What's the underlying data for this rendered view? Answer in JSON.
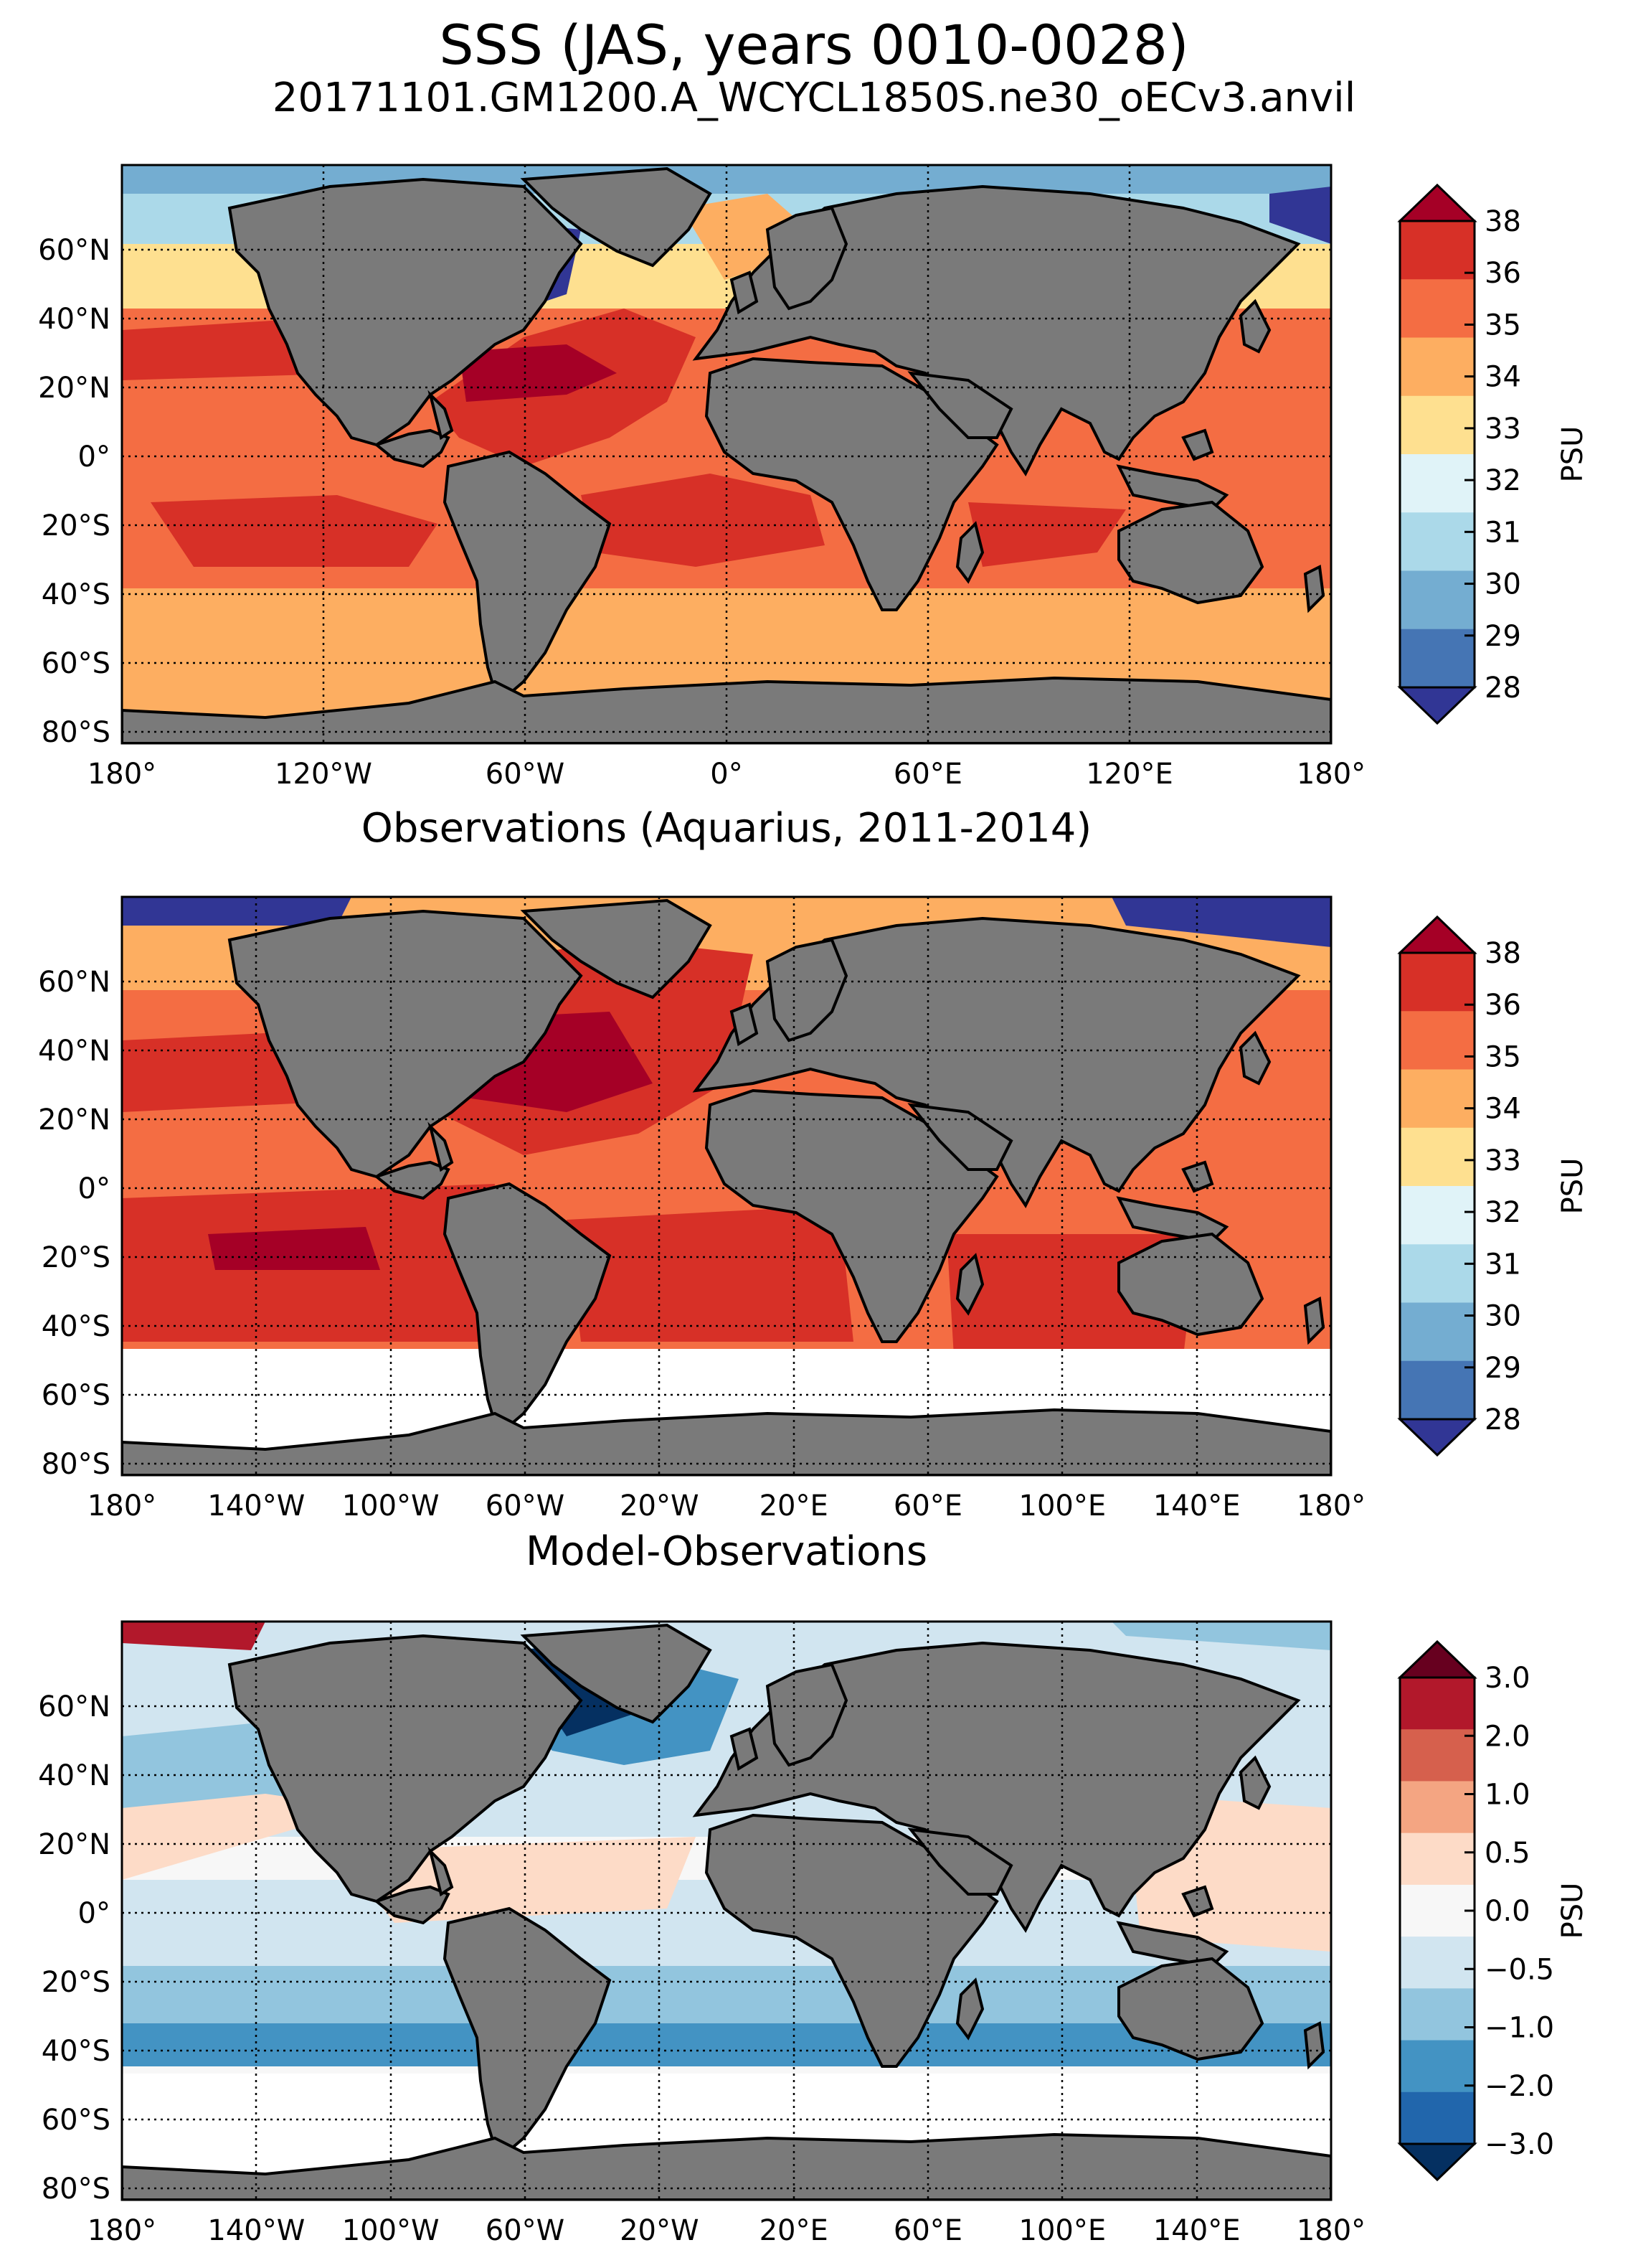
{
  "title": "SSS (JAS, years 0010-0028)",
  "subtitle": "20171101.GM1200.A_WCYCL1850S.ne30_oECv3.anvil",
  "colors": {
    "land": "#7a7a7a",
    "nodata": "#ffffff",
    "grid": "#000000"
  },
  "panels": [
    {
      "id": "model",
      "title": "",
      "lon_ticks": [
        "180°",
        "120°W",
        "60°W",
        "0°",
        "60°E",
        "120°E",
        "180°"
      ],
      "lat_ticks": [
        "60°N",
        "40°N",
        "20°N",
        "0°",
        "20°S",
        "40°S",
        "60°S",
        "80°S"
      ],
      "colorbar": {
        "label": "PSU",
        "ticks": [
          "38",
          "36",
          "35",
          "34",
          "33",
          "32",
          "31",
          "30",
          "29",
          "28"
        ],
        "colors": [
          "#a50026",
          "#d73027",
          "#f46d43",
          "#fdae61",
          "#fee090",
          "#e0f3f8",
          "#abd9e9",
          "#74add1",
          "#4575b4",
          "#313695"
        ]
      }
    },
    {
      "id": "obs",
      "title": "Observations (Aquarius, 2011-2014)",
      "lon_ticks": [
        "180°",
        "140°W",
        "100°W",
        "60°W",
        "20°W",
        "20°E",
        "60°E",
        "100°E",
        "140°E",
        "180°"
      ],
      "lat_ticks": [
        "60°N",
        "40°N",
        "20°N",
        "0°",
        "20°S",
        "40°S",
        "60°S",
        "80°S"
      ],
      "colorbar": {
        "label": "PSU",
        "ticks": [
          "38",
          "36",
          "35",
          "34",
          "33",
          "32",
          "31",
          "30",
          "29",
          "28"
        ],
        "colors": [
          "#a50026",
          "#d73027",
          "#f46d43",
          "#fdae61",
          "#fee090",
          "#e0f3f8",
          "#abd9e9",
          "#74add1",
          "#4575b4",
          "#313695"
        ]
      }
    },
    {
      "id": "diff",
      "title": "Model-Observations",
      "lon_ticks": [
        "180°",
        "140°W",
        "100°W",
        "60°W",
        "20°W",
        "20°E",
        "60°E",
        "100°E",
        "140°E",
        "180°"
      ],
      "lat_ticks": [
        "60°N",
        "40°N",
        "20°N",
        "0°",
        "20°S",
        "40°S",
        "60°S",
        "80°S"
      ],
      "colorbar": {
        "label": "PSU",
        "ticks": [
          "3.0",
          "2.0",
          "1.0",
          "0.5",
          "0.0",
          "−0.5",
          "−1.0",
          "−2.0",
          "−3.0"
        ],
        "colors": [
          "#67001f",
          "#b2182b",
          "#d6604d",
          "#f4a582",
          "#fddbc7",
          "#f7f7f7",
          "#d1e5f0",
          "#92c5de",
          "#4393c3",
          "#2166ac",
          "#053061"
        ]
      }
    }
  ]
}
